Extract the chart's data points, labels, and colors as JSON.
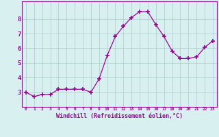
{
  "x": [
    0,
    1,
    2,
    3,
    4,
    5,
    6,
    7,
    8,
    9,
    10,
    11,
    12,
    13,
    14,
    15,
    16,
    17,
    18,
    19,
    20,
    21,
    22,
    23
  ],
  "y": [
    3.0,
    2.7,
    2.85,
    2.85,
    3.2,
    3.2,
    3.2,
    3.2,
    3.0,
    3.9,
    5.5,
    6.8,
    7.5,
    8.1,
    8.5,
    8.5,
    7.6,
    6.8,
    5.8,
    5.3,
    5.3,
    5.4,
    6.05,
    6.5
  ],
  "line_color": "#990099",
  "marker": "+",
  "marker_size": 4,
  "marker_color": "#990099",
  "bg_color": "#d8f0f0",
  "grid_color": "#aacccc",
  "xlabel": "Windchill (Refroidissement éolien,°C)",
  "xlabel_color": "#990099",
  "tick_color": "#990099",
  "ylim": [
    2.0,
    9.2
  ],
  "xlim": [
    -0.5,
    23.5
  ],
  "yticks": [
    3,
    4,
    5,
    6,
    7,
    8
  ],
  "xticks": [
    0,
    1,
    2,
    3,
    4,
    5,
    6,
    7,
    8,
    9,
    10,
    11,
    12,
    13,
    14,
    15,
    16,
    17,
    18,
    19,
    20,
    21,
    22,
    23
  ],
  "xtick_labels": [
    "0",
    "1",
    "2",
    "3",
    "4",
    "5",
    "6",
    "7",
    "8",
    "9",
    "10",
    "11",
    "12",
    "13",
    "14",
    "15",
    "16",
    "17",
    "18",
    "19",
    "20",
    "21",
    "22",
    "23"
  ],
  "spine_color": "#990099"
}
